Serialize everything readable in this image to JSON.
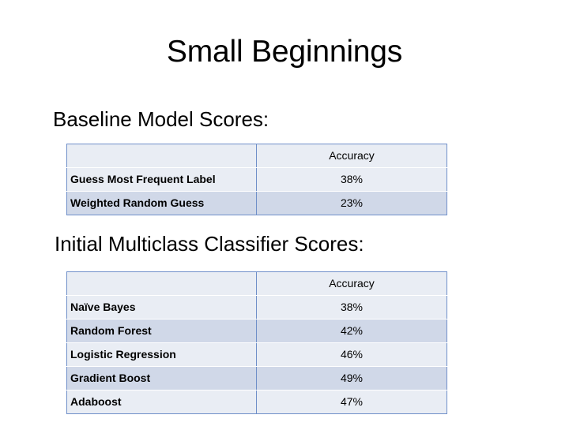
{
  "slide": {
    "title": "Small Beginnings"
  },
  "baseline": {
    "heading": "Baseline Model Scores:",
    "column_header": "Accuracy",
    "rows": [
      {
        "label": "Guess Most Frequent Label",
        "value": "38%"
      },
      {
        "label": "Weighted Random Guess",
        "value": "23%"
      }
    ]
  },
  "multiclass": {
    "heading": "Initial Multiclass Classifier Scores:",
    "column_header": "Accuracy",
    "rows": [
      {
        "label": "Naïve Bayes",
        "value": "38%"
      },
      {
        "label": "Random Forest",
        "value": "42%"
      },
      {
        "label": "Logistic Regression",
        "value": "46%"
      },
      {
        "label": "Gradient Boost",
        "value": "49%"
      },
      {
        "label": "Adaboost",
        "value": "47%"
      }
    ]
  },
  "colors": {
    "row_light": "#e9edf4",
    "row_dark": "#d0d8e8",
    "table_border": "#6f8fc9"
  }
}
